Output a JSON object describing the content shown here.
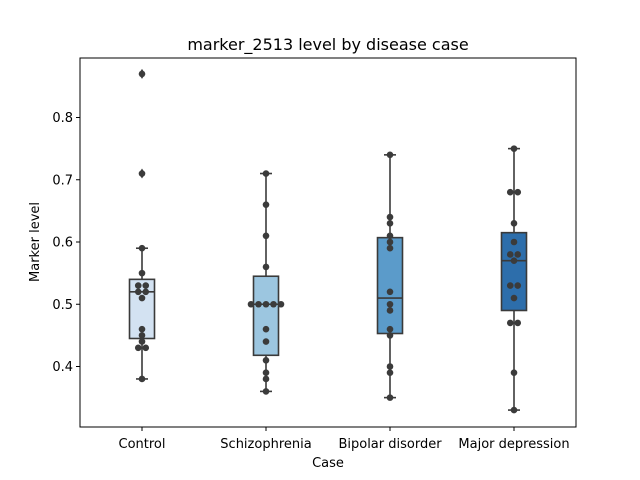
{
  "chart_data": {
    "type": "box",
    "title": "marker_2513 level by disease case",
    "xlabel": "Case",
    "ylabel": "Marker level",
    "ylim": [
      0.3,
      0.89
    ],
    "yticks": [
      "0.4",
      "0.5",
      "0.6",
      "0.7",
      "0.8"
    ],
    "categories": [
      "Control",
      "Schizophrenia",
      "Bipolar disorder",
      "Major depression"
    ],
    "grid": false,
    "boxes": [
      {
        "category": "Control",
        "color": "#d3e2f2",
        "whisker_low": 0.38,
        "q1": 0.445,
        "median": 0.52,
        "q3": 0.54,
        "whisker_high": 0.59,
        "outliers": [
          0.71,
          0.87
        ]
      },
      {
        "category": "Schizophrenia",
        "color": "#9cc6e0",
        "whisker_low": 0.36,
        "q1": 0.418,
        "median": 0.5,
        "q3": 0.545,
        "whisker_high": 0.71,
        "outliers": []
      },
      {
        "category": "Bipolar disorder",
        "color": "#5b9bca",
        "whisker_low": 0.35,
        "q1": 0.453,
        "median": 0.51,
        "q3": 0.607,
        "whisker_high": 0.74,
        "outliers": []
      },
      {
        "category": "Major depression",
        "color": "#2d6eab",
        "whisker_low": 0.33,
        "q1": 0.49,
        "median": 0.57,
        "q3": 0.615,
        "whisker_high": 0.75,
        "outliers": []
      }
    ],
    "points": [
      {
        "category": "Control",
        "values": [
          0.87,
          0.71,
          0.59,
          0.55,
          0.53,
          0.53,
          0.52,
          0.52,
          0.51,
          0.46,
          0.45,
          0.44,
          0.43,
          0.43,
          0.38
        ]
      },
      {
        "category": "Schizophrenia",
        "values": [
          0.71,
          0.66,
          0.61,
          0.56,
          0.5,
          0.5,
          0.5,
          0.5,
          0.5,
          0.46,
          0.44,
          0.41,
          0.39,
          0.38,
          0.36
        ]
      },
      {
        "category": "Bipolar disorder",
        "values": [
          0.74,
          0.64,
          0.63,
          0.61,
          0.6,
          0.59,
          0.52,
          0.5,
          0.49,
          0.46,
          0.45,
          0.4,
          0.39,
          0.35
        ]
      },
      {
        "category": "Major depression",
        "values": [
          0.75,
          0.68,
          0.68,
          0.63,
          0.6,
          0.58,
          0.58,
          0.57,
          0.53,
          0.53,
          0.51,
          0.47,
          0.47,
          0.39,
          0.33
        ]
      }
    ]
  }
}
